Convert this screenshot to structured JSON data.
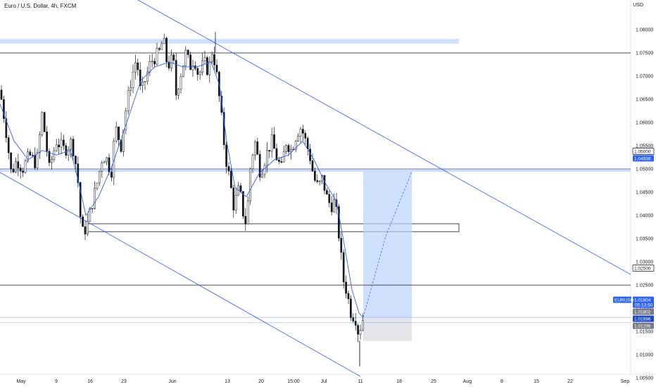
{
  "header": {
    "symbol": "Euro / U.S. Dollar, 4h, FXCM",
    "currency": "USD"
  },
  "chart_data": {
    "type": "candlestick",
    "title": "Euro / U.S. Dollar, 4h, FXCM",
    "ylabel": "USD",
    "ylim": [
      1.00335,
      1.08505
    ],
    "y_ticks": [
      "1.08000",
      "1.07500",
      "1.07000",
      "1.06500",
      "1.06000",
      "1.05500",
      "1.05000",
      "1.04500",
      "1.04000",
      "1.03500",
      "1.03000",
      "1.02500",
      "1.02000",
      "1.01500",
      "1.01000",
      "1.00500"
    ],
    "x_ticks": [
      "May",
      "9",
      "16",
      "23",
      "Jun",
      "13",
      "20",
      "15:00",
      "Jul",
      "11",
      "18",
      "25",
      "Aug",
      "8",
      "15",
      "22",
      "Sep"
    ],
    "price_path": [
      [
        0,
        1.067
      ],
      [
        8,
        1.059
      ],
      [
        16,
        1.049
      ],
      [
        24,
        1.052
      ],
      [
        32,
        1.05
      ],
      [
        42,
        1.053
      ],
      [
        52,
        1.051
      ],
      [
        60,
        1.062
      ],
      [
        70,
        1.05
      ],
      [
        80,
        1.056
      ],
      [
        92,
        1.054
      ],
      [
        102,
        1.056
      ],
      [
        110,
        1.049
      ],
      [
        114,
        1.04
      ],
      [
        118,
        1.036
      ],
      [
        124,
        1.038
      ],
      [
        130,
        1.042
      ],
      [
        138,
        1.047
      ],
      [
        146,
        1.053
      ],
      [
        152,
        1.052
      ],
      [
        158,
        1.049
      ],
      [
        164,
        1.059
      ],
      [
        172,
        1.055
      ],
      [
        178,
        1.062
      ],
      [
        186,
        1.069
      ],
      [
        194,
        1.074
      ],
      [
        200,
        1.066
      ],
      [
        208,
        1.07
      ],
      [
        214,
        1.073
      ],
      [
        220,
        1.074
      ],
      [
        226,
        1.075
      ],
      [
        232,
        1.078
      ],
      [
        238,
        1.072
      ],
      [
        246,
        1.074
      ],
      [
        250,
        1.066
      ],
      [
        256,
        1.07
      ],
      [
        264,
        1.075
      ],
      [
        270,
        1.072
      ],
      [
        276,
        1.074
      ],
      [
        282,
        1.07
      ],
      [
        290,
        1.073
      ],
      [
        296,
        1.071
      ],
      [
        302,
        1.076
      ],
      [
        308,
        1.07
      ],
      [
        314,
        1.062
      ],
      [
        320,
        1.053
      ],
      [
        326,
        1.048
      ],
      [
        332,
        1.042
      ],
      [
        340,
        1.046
      ],
      [
        346,
        1.04
      ],
      [
        350,
        1.038
      ],
      [
        356,
        1.051
      ],
      [
        362,
        1.056
      ],
      [
        370,
        1.049
      ],
      [
        378,
        1.053
      ],
      [
        386,
        1.056
      ],
      [
        394,
        1.052
      ],
      [
        400,
        1.05
      ],
      [
        406,
        1.056
      ],
      [
        414,
        1.054
      ],
      [
        422,
        1.058
      ],
      [
        428,
        1.059
      ],
      [
        434,
        1.056
      ],
      [
        440,
        1.053
      ],
      [
        446,
        1.048
      ],
      [
        452,
        1.046
      ],
      [
        458,
        1.048
      ],
      [
        464,
        1.044
      ],
      [
        470,
        1.042
      ],
      [
        476,
        1.043
      ],
      [
        480,
        1.038
      ],
      [
        484,
        1.032
      ],
      [
        488,
        1.026
      ],
      [
        492,
        1.024
      ],
      [
        496,
        1.021
      ],
      [
        500,
        1.018
      ],
      [
        504,
        1.019
      ],
      [
        508,
        1.015
      ],
      [
        512,
        1.016
      ],
      [
        516,
        1.018
      ]
    ],
    "moving_average": [
      [
        0,
        1.064
      ],
      [
        20,
        1.056
      ],
      [
        40,
        1.052
      ],
      [
        60,
        1.054
      ],
      [
        80,
        1.053
      ],
      [
        100,
        1.054
      ],
      [
        112,
        1.047
      ],
      [
        122,
        1.04
      ],
      [
        140,
        1.044
      ],
      [
        160,
        1.051
      ],
      [
        180,
        1.06
      ],
      [
        200,
        1.069
      ],
      [
        220,
        1.072
      ],
      [
        240,
        1.073
      ],
      [
        260,
        1.072
      ],
      [
        280,
        1.072
      ],
      [
        300,
        1.073
      ],
      [
        312,
        1.068
      ],
      [
        322,
        1.056
      ],
      [
        334,
        1.046
      ],
      [
        350,
        1.044
      ],
      [
        368,
        1.049
      ],
      [
        390,
        1.052
      ],
      [
        410,
        1.053
      ],
      [
        430,
        1.056
      ],
      [
        446,
        1.052
      ],
      [
        462,
        1.047
      ],
      [
        478,
        1.043
      ],
      [
        490,
        1.033
      ],
      [
        500,
        1.024
      ],
      [
        510,
        1.019
      ],
      [
        516,
        1.018
      ]
    ],
    "horizontal_levels": [
      {
        "value": 1.075,
        "label": "1.07500"
      },
      {
        "value": 1.05,
        "label": "1.05000"
      },
      {
        "value": 1.025,
        "label": "1.02500"
      }
    ],
    "zones": [
      {
        "name": "resistance",
        "y1": 1.078,
        "y2": 1.077
      },
      {
        "name": "support-shelf",
        "y1": 1.0382,
        "y2": 1.0365
      },
      {
        "name": "target",
        "y1": 1.04938,
        "y2": 1.01804
      },
      {
        "name": "stop",
        "y1": 1.01804,
        "y2": 1.01295
      }
    ],
    "price_tags": [
      {
        "value": 1.05,
        "label": "1.05000",
        "style": "outline"
      },
      {
        "value": 1.04938,
        "label": "1.04938",
        "style": "blue"
      },
      {
        "value": 1.025,
        "label": "1.02500",
        "style": "outline"
      },
      {
        "value": 1.01804,
        "label": "1.01804",
        "style": "blue",
        "extra": "05:13:50"
      },
      {
        "value": 1.01802,
        "label": "1.01802",
        "style": "gray"
      },
      {
        "value": 1.01696,
        "label": "1.01696",
        "style": "navy"
      },
      {
        "value": 1.01295,
        "label": "1.01295",
        "style": "gray"
      }
    ],
    "symbol_tag": "EURUSD"
  },
  "colors": {
    "up": "#ffffff",
    "down": "#131722",
    "ma": "#2962ff",
    "trend": "#2962ff",
    "zone_blue": "#bbd3fb",
    "zone_gray": "#d1d4dc",
    "level": "#131722",
    "tag_blue": "#2962ff",
    "tag_navy": "#1848cc",
    "tag_gray": "#787b86"
  }
}
